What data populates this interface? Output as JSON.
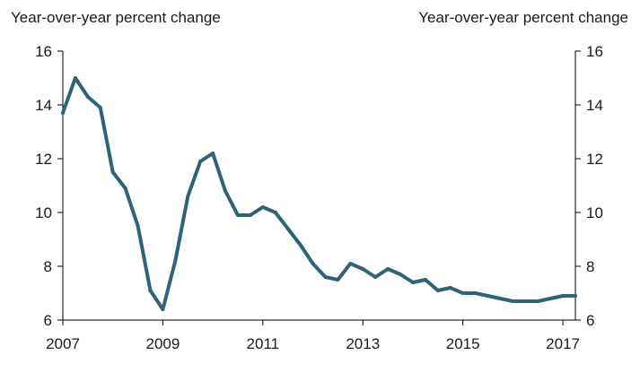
{
  "chart_data": {
    "type": "line",
    "title": "",
    "ylabel_left": "Year-over-year percent change",
    "ylabel_right": "Year-over-year percent change",
    "xlabel": "",
    "ylim": [
      6,
      16
    ],
    "yticks": [
      6,
      8,
      10,
      12,
      14,
      16
    ],
    "xlim": [
      2007.0,
      2017.25
    ],
    "xticks": [
      2007,
      2009,
      2011,
      2013,
      2015,
      2017
    ],
    "xtick_labels": [
      "2007",
      "2009",
      "2011",
      "2013",
      "2015",
      "2017"
    ],
    "grid": false,
    "legend": "none",
    "colors": {
      "series": "#2e6378"
    },
    "series": [
      {
        "x": [
          2007.0,
          2007.25,
          2007.5,
          2007.75,
          2008.0,
          2008.25,
          2008.5,
          2008.75,
          2009.0,
          2009.25,
          2009.5,
          2009.75,
          2010.0,
          2010.25,
          2010.5,
          2010.75,
          2011.0,
          2011.25,
          2011.5,
          2011.75,
          2012.0,
          2012.25,
          2012.5,
          2012.75,
          2013.0,
          2013.25,
          2013.5,
          2013.75,
          2014.0,
          2014.25,
          2014.5,
          2014.75,
          2015.0,
          2015.25,
          2015.5,
          2015.75,
          2016.0,
          2016.25,
          2016.5,
          2016.75,
          2017.0,
          2017.25
        ],
        "values": [
          13.7,
          15.0,
          14.3,
          13.9,
          11.5,
          10.9,
          9.5,
          7.1,
          6.4,
          8.2,
          10.6,
          11.9,
          12.2,
          10.8,
          9.9,
          9.9,
          10.2,
          10.0,
          9.4,
          8.8,
          8.1,
          7.6,
          7.5,
          8.1,
          7.9,
          7.6,
          7.9,
          7.7,
          7.4,
          7.5,
          7.1,
          7.2,
          7.0,
          7.0,
          6.9,
          6.8,
          6.7,
          6.7,
          6.7,
          6.8,
          6.9,
          6.9
        ]
      }
    ]
  }
}
